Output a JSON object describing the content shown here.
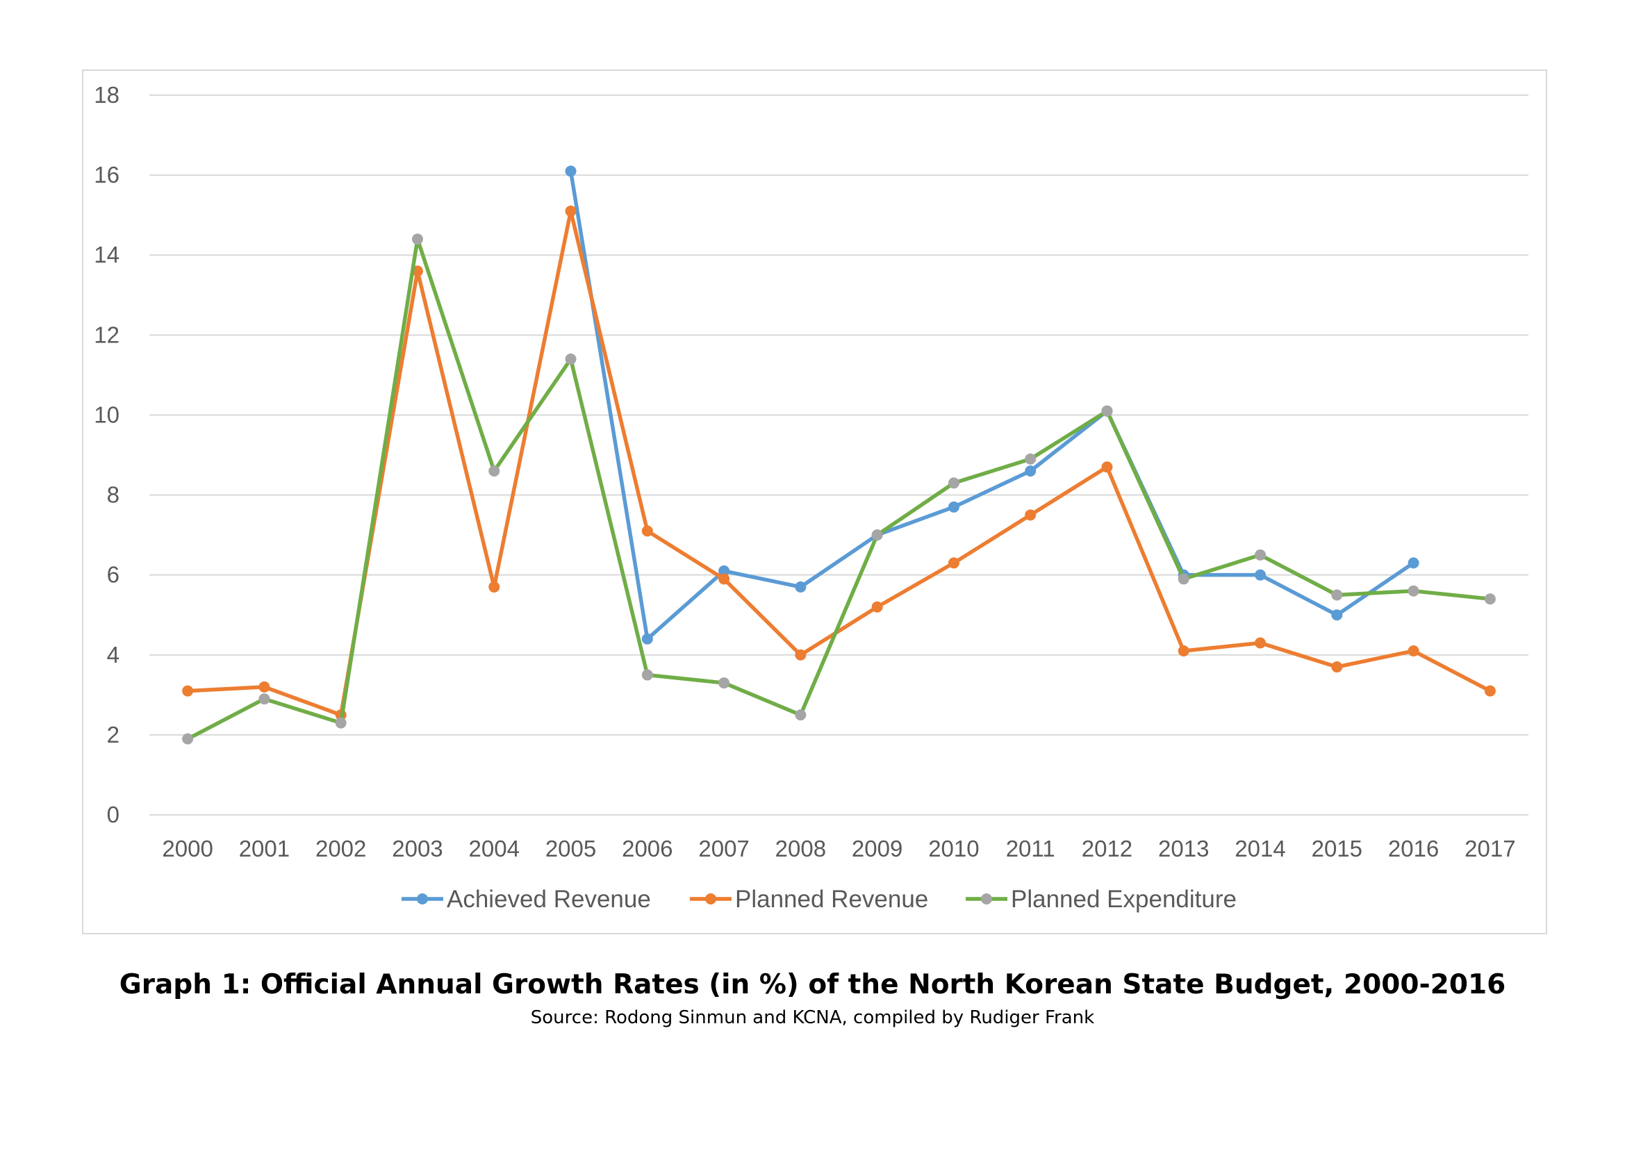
{
  "caption": {
    "title": "Graph 1: Official Annual Growth Rates (in %) of the North Korean State Budget, 2000-2016",
    "source": "Source: Rodong Sinmun and KCNA, compiled by Rudiger Frank"
  },
  "chart_data": {
    "type": "line",
    "title": "",
    "xlabel": "",
    "ylabel": "",
    "ylim": [
      0,
      18
    ],
    "yticks": [
      0,
      2,
      4,
      6,
      8,
      10,
      12,
      14,
      16,
      18
    ],
    "grid": "horizontal",
    "legend_position": "bottom",
    "categories": [
      "2000",
      "2001",
      "2002",
      "2003",
      "2004",
      "2005",
      "2006",
      "2007",
      "2008",
      "2009",
      "2010",
      "2011",
      "2012",
      "2013",
      "2014",
      "2015",
      "2016",
      "2017"
    ],
    "series": [
      {
        "name": "Achieved Revenue",
        "color": "#5b9bd5",
        "marker_color": "#5b9bd5",
        "values": [
          null,
          null,
          null,
          null,
          null,
          16.1,
          4.4,
          6.1,
          5.7,
          7.0,
          7.7,
          8.6,
          10.1,
          6.0,
          6.0,
          5.0,
          6.3,
          null
        ]
      },
      {
        "name": "Planned Revenue",
        "color": "#ed7d31",
        "marker_color": "#ed7d31",
        "values": [
          3.1,
          3.2,
          2.5,
          13.6,
          5.7,
          15.1,
          7.1,
          5.9,
          4.0,
          5.2,
          6.3,
          7.5,
          8.7,
          4.1,
          4.3,
          3.7,
          4.1,
          3.1
        ]
      },
      {
        "name": "Planned Expenditure",
        "color": "#70ad47",
        "marker_color": "#a5a5a5",
        "values": [
          1.9,
          2.9,
          2.3,
          14.4,
          8.6,
          11.4,
          3.5,
          3.3,
          2.5,
          7.0,
          8.3,
          8.9,
          10.1,
          5.9,
          6.5,
          5.5,
          5.6,
          5.4
        ]
      }
    ]
  }
}
